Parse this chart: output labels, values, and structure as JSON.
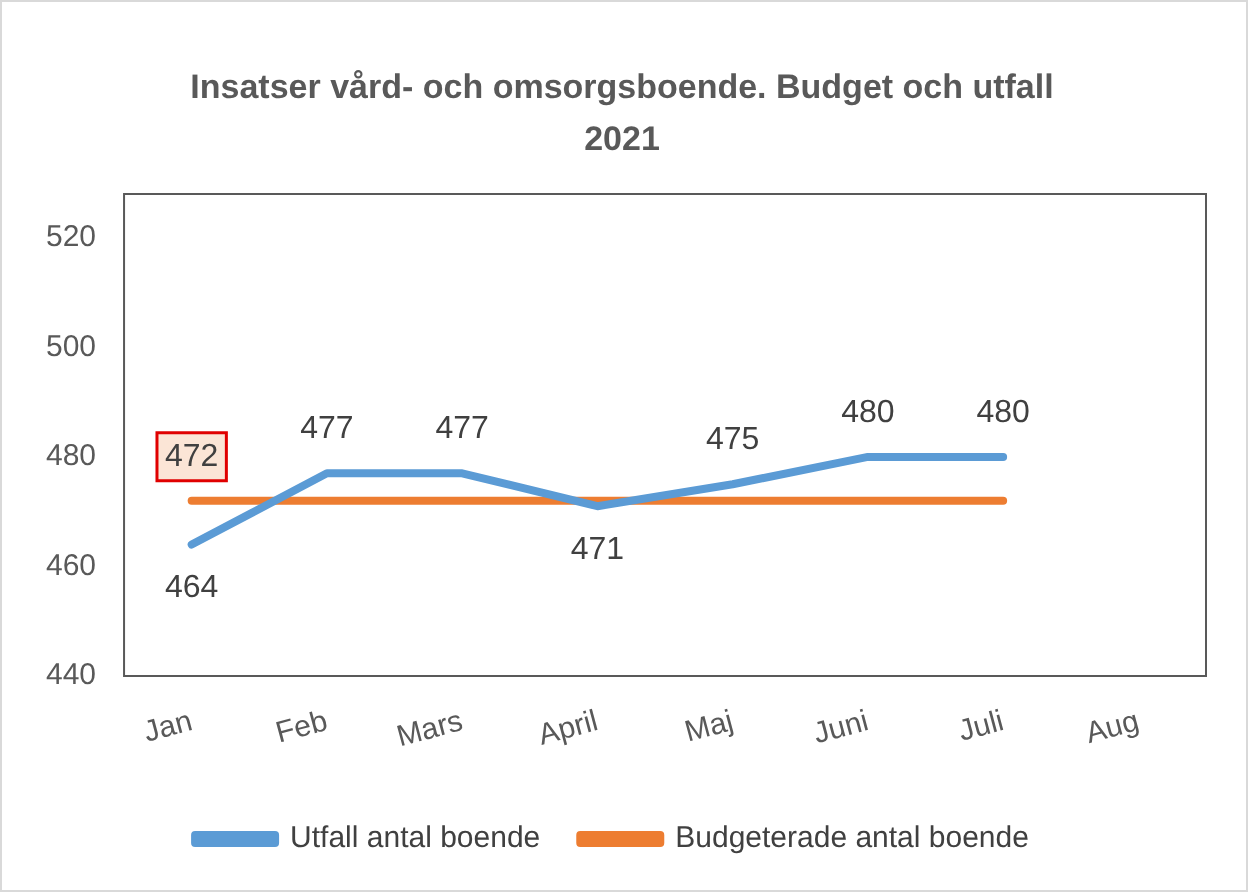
{
  "chart_data": {
    "type": "line",
    "title": "Insatser vård- och omsorgsboende. Budget och utfall 2021",
    "categories": [
      "Jan",
      "Feb",
      "Mars",
      "April",
      "Maj",
      "Juni",
      "Juli",
      "Aug"
    ],
    "series": [
      {
        "name": "Utfall antal boende",
        "color": "#5b9bd5",
        "values": [
          464,
          477,
          477,
          471,
          475,
          480,
          480,
          null
        ],
        "value_labels": [
          "464",
          "477",
          "477",
          "471",
          "475",
          "480",
          "480",
          null
        ]
      },
      {
        "name": "Budgeterade antal boende",
        "color": "#ed7d31",
        "values": [
          472,
          472,
          472,
          472,
          472,
          472,
          472,
          null
        ],
        "value_labels": [
          "472",
          null,
          null,
          null,
          null,
          null,
          null,
          null
        ]
      }
    ],
    "ylim": [
      440,
      528
    ],
    "yticks": [
      440,
      460,
      480,
      500,
      520
    ],
    "grid": false,
    "legend": "bottom",
    "marker": "none",
    "line_style": "solid"
  }
}
